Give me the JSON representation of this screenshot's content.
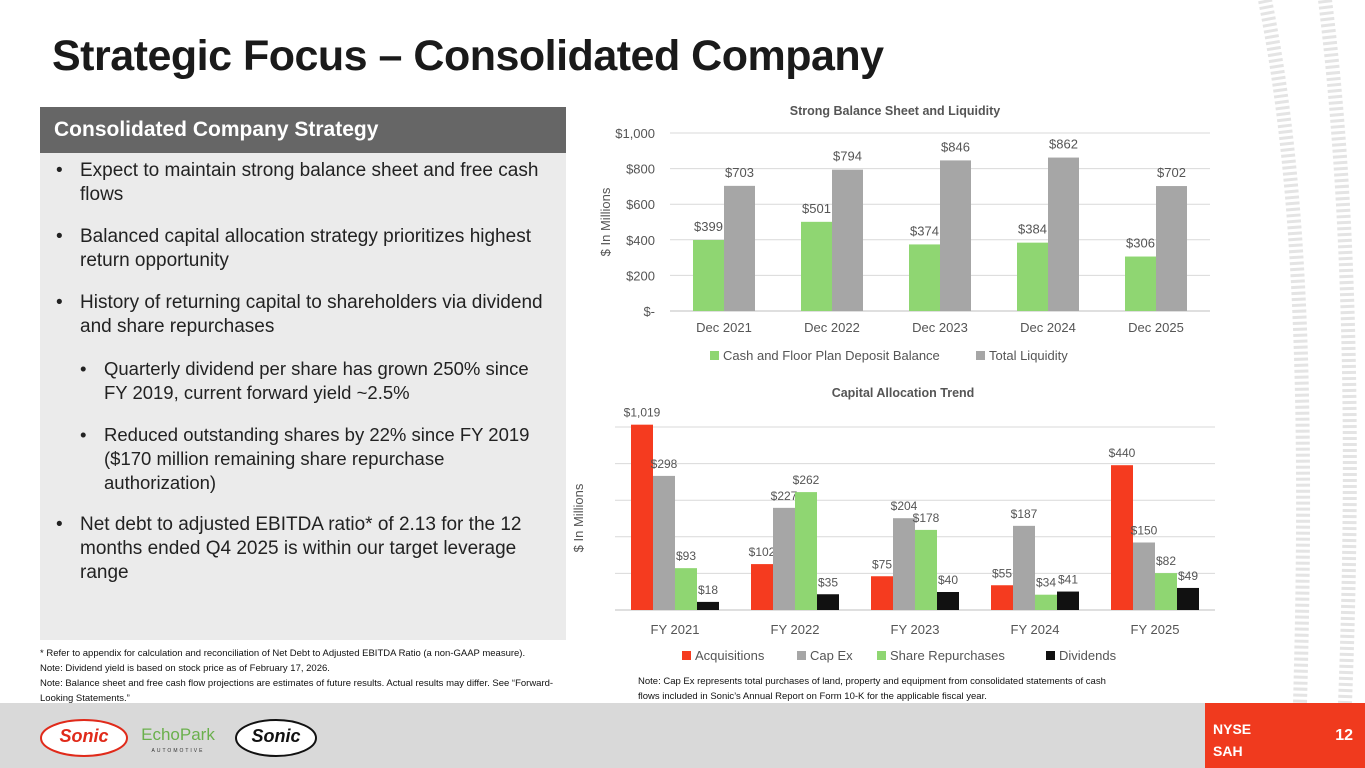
{
  "title": "Strategic Focus – Consolidated Company",
  "panel": {
    "heading": "Consolidated Company Strategy",
    "bullets": [
      {
        "text": "Expect to maintain strong balance sheet and free cash flows",
        "level": 1
      },
      {
        "text": "Balanced capital allocation strategy prioritizes highest return opportunity",
        "level": 1
      },
      {
        "text": "History of returning capital to shareholders via dividend and share repurchases",
        "level": 1
      },
      {
        "text": "Quarterly dividend per share has grown 250% since FY 2019, current forward yield ~2.5%",
        "level": 2
      },
      {
        "text": "Reduced outstanding shares by 22% since FY 2019 ($170 million remaining share repurchase authorization)",
        "level": 2
      },
      {
        "text": "Net debt to adjusted EBITDA ratio* of 2.13 for the 12 months ended Q4 2025 is within our target leverage range",
        "level": 1
      }
    ],
    "bullet_glyph": "•"
  },
  "notes_left": [
    "* Refer to appendix for calculation and reconciliation of Net Debt to Adjusted EBITDA Ratio (a non-GAAP measure).",
    "Note: Dividend yield is based on stock price as of February 17, 2026.",
    "Note: Balance sheet and free cash flow projections are estimates of future results. Actual results may differ. See “Forward-Looking Statements.”"
  ],
  "note_right": "Note: Cap Ex represents total purchases of land, property and equipment from consolidated statements of cash flows included in Sonic’s Annual Report on Form 10-K for the applicable fiscal year.",
  "footer": {
    "exchange": "NYSE",
    "ticker": "SAH",
    "page": "12",
    "logos": [
      "Sonic Automotive",
      "EchoPark Automotive",
      "Sonic Powersports"
    ],
    "accent": "#f03a1e"
  },
  "chart_data": [
    {
      "type": "bar",
      "title": "Strong Balance Sheet and Liquidity",
      "ylabel": "$ In Millions",
      "xlabel": "",
      "categories": [
        "Dec 2021",
        "Dec 2022",
        "Dec 2023",
        "Dec 2024",
        "Dec 2025"
      ],
      "ylim": [
        0,
        1000
      ],
      "yticks": [
        0,
        200,
        400,
        600,
        800,
        1000
      ],
      "ytick_labels": [
        "$-",
        "$200",
        "$400",
        "$600",
        "$800",
        "$1,000"
      ],
      "grid": true,
      "legend": "bottom",
      "series": [
        {
          "name": "Cash and Floor Plan Deposit Balance",
          "color": "#8fd672",
          "values": [
            399,
            501,
            374,
            384,
            306
          ],
          "labels": [
            "$399",
            "$501",
            "$374",
            "$384",
            "$306"
          ]
        },
        {
          "name": "Total Liquidity",
          "color": "#a6a6a6",
          "values": [
            703,
            794,
            846,
            862,
            702
          ],
          "labels": [
            "$703",
            "$794",
            "$846",
            "$862",
            "$702"
          ]
        }
      ]
    },
    {
      "type": "bar",
      "title": "Capital Allocation Trend",
      "ylabel": "$ In Millions",
      "xlabel": "",
      "categories": [
        "FY 2021",
        "FY 2022",
        "FY 2023",
        "FY 2024",
        "FY 2025"
      ],
      "grid": true,
      "legend": "bottom",
      "series": [
        {
          "name": "Acquisitions",
          "color": "#f53b1f",
          "values": [
            1019,
            102,
            75,
            55,
            440
          ],
          "labels": [
            "$1,019",
            "$102",
            "$75",
            "$55",
            "$440"
          ]
        },
        {
          "name": "Cap Ex",
          "color": "#a6a6a6",
          "values": [
            298,
            227,
            204,
            187,
            150
          ],
          "labels": [
            "$298",
            "$227",
            "$204",
            "$187",
            "$150"
          ]
        },
        {
          "name": "Share Repurchases",
          "color": "#8fd672",
          "values": [
            93,
            262,
            178,
            34,
            82
          ],
          "labels": [
            "$93",
            "$262",
            "$178",
            "$34",
            "$82"
          ]
        },
        {
          "name": "Dividends",
          "color": "#111111",
          "values": [
            18,
            35,
            40,
            41,
            49
          ],
          "labels": [
            "$18",
            "$35",
            "$40",
            "$41",
            "$49"
          ]
        }
      ]
    }
  ]
}
